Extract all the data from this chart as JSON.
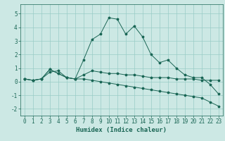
{
  "xlabel": "Humidex (Indice chaleur)",
  "xlim": [
    -0.5,
    23.5
  ],
  "ylim": [
    -2.5,
    5.7
  ],
  "yticks": [
    -2,
    -1,
    0,
    1,
    2,
    3,
    4,
    5
  ],
  "xticks": [
    0,
    1,
    2,
    3,
    4,
    5,
    6,
    7,
    8,
    9,
    10,
    11,
    12,
    13,
    14,
    15,
    16,
    17,
    18,
    19,
    20,
    21,
    22,
    23
  ],
  "background_color": "#cce8e4",
  "grid_color": "#99ccc6",
  "line_color": "#1a6655",
  "line1_y": [
    0.2,
    0.1,
    0.2,
    0.7,
    0.8,
    0.3,
    0.2,
    1.6,
    3.1,
    3.5,
    4.7,
    4.6,
    3.5,
    4.1,
    3.3,
    2.0,
    1.4,
    1.6,
    1.0,
    0.5,
    0.3,
    0.3,
    -0.2,
    -0.9
  ],
  "line2_y": [
    0.2,
    0.1,
    0.2,
    0.9,
    0.6,
    0.3,
    0.2,
    0.5,
    0.8,
    0.7,
    0.6,
    0.6,
    0.5,
    0.5,
    0.4,
    0.3,
    0.3,
    0.3,
    0.2,
    0.2,
    0.2,
    0.1,
    0.1,
    0.1
  ],
  "line3_y": [
    0.2,
    0.1,
    0.2,
    0.9,
    0.6,
    0.3,
    0.2,
    0.2,
    0.1,
    0.0,
    -0.1,
    -0.2,
    -0.3,
    -0.4,
    -0.5,
    -0.6,
    -0.7,
    -0.8,
    -0.9,
    -1.0,
    -1.1,
    -1.2,
    -1.5,
    -1.8
  ],
  "tick_fontsize": 5.5,
  "xlabel_fontsize": 6.5
}
